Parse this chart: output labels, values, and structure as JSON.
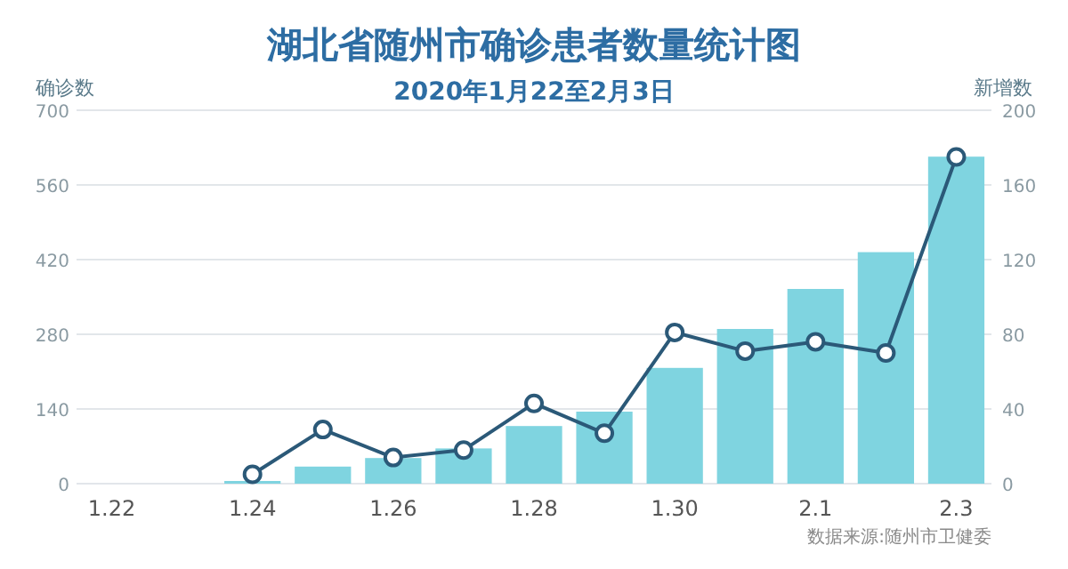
{
  "chart_data": {
    "type": "bar",
    "title": "湖北省随州市确诊患者数量统计图",
    "subtitle": "2020年1月22至2月3日",
    "ylabel": "确诊数",
    "y2label": "新增数",
    "annotations": [
      "数据来源:随州市卫健委"
    ],
    "categories": [
      "1.22",
      null,
      "1.24",
      null,
      "1.26",
      null,
      "1.28",
      null,
      "1.30",
      null,
      "2.1",
      null,
      "2.3"
    ],
    "series": [
      {
        "color": "#7fd4e0",
        "values": [
          0,
          0,
          5,
          32,
          48,
          66,
          108,
          135,
          217,
          290,
          365,
          434,
          613
        ]
      },
      {
        "type": "line",
        "axis": "y2",
        "color": "#2b5978",
        "values": [
          null,
          null,
          5,
          29,
          14,
          18,
          43,
          27,
          81,
          71,
          76,
          70,
          175
        ]
      }
    ],
    "ylim": [
      0,
      700
    ],
    "yticks": [
      0,
      140,
      280,
      420,
      560,
      700
    ],
    "y2lim": [
      0,
      200
    ],
    "y2ticks": [
      0,
      40,
      80,
      120,
      160,
      200
    ],
    "grid": "y",
    "marker": "circle"
  }
}
